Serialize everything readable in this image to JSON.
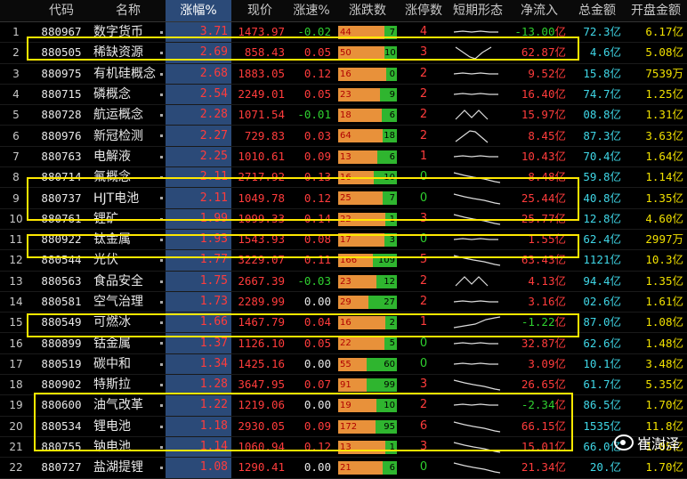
{
  "header": {
    "idx": "",
    "code": "代码",
    "name": "名称",
    "pct": "涨幅%",
    "price": "现价",
    "speed": "涨速%",
    "updown": "涨跌数",
    "limit": "涨停数",
    "trend": "短期形态",
    "netflow": "净流入",
    "amount": "总金额",
    "open_amount": "开盘金额"
  },
  "rows": [
    {
      "idx": "1",
      "code": "880967",
      "name": "数字货币",
      "pct": "3.71",
      "price": "1473.97",
      "speed": "-0.02",
      "up": 44,
      "down": 7,
      "limit": "4",
      "trend": "flat",
      "netflow": "-13.00",
      "amount": "72.3",
      "open_amount": "6.17"
    },
    {
      "idx": "2",
      "code": "880505",
      "name": "稀缺资源",
      "pct": "2.69",
      "price": "858.43",
      "speed": "0.05",
      "up": 50,
      "down": 10,
      "limit": "3",
      "trend": "v",
      "netflow": "62.87",
      "amount": "4.6",
      "open_amount": "5.08"
    },
    {
      "idx": "3",
      "code": "880975",
      "name": "有机硅概念",
      "pct": "2.68",
      "price": "1883.05",
      "speed": "0.12",
      "up": 16,
      "down": 0,
      "limit": "2",
      "trend": "flat",
      "netflow": "9.52",
      "amount": "15.8",
      "open_amount": "7539万"
    },
    {
      "idx": "4",
      "code": "880715",
      "name": "磷概念",
      "pct": "2.54",
      "price": "2249.01",
      "speed": "0.05",
      "up": 23,
      "down": 9,
      "limit": "2",
      "trend": "flat",
      "netflow": "16.40",
      "amount": "74.7",
      "open_amount": "1.25"
    },
    {
      "idx": "5",
      "code": "880728",
      "name": "航运概念",
      "pct": "2.28",
      "price": "1071.54",
      "speed": "-0.01",
      "up": 18,
      "down": 6,
      "limit": "2",
      "trend": "m",
      "netflow": "15.97",
      "amount": "08.8",
      "open_amount": "1.31"
    },
    {
      "idx": "6",
      "code": "880976",
      "name": "新冠检测",
      "pct": "2.27",
      "price": "729.83",
      "speed": "0.03",
      "up": 64,
      "down": 18,
      "limit": "2",
      "trend": "peak",
      "netflow": "8.45",
      "amount": "87.3",
      "open_amount": "3.63"
    },
    {
      "idx": "7",
      "code": "880763",
      "name": "电解液",
      "pct": "2.25",
      "price": "1010.61",
      "speed": "0.09",
      "up": 13,
      "down": 6,
      "limit": "1",
      "trend": "flat",
      "netflow": "10.43",
      "amount": "70.4",
      "open_amount": "1.64"
    },
    {
      "idx": "8",
      "code": "880714",
      "name": "氟概念",
      "pct": "2.11",
      "price": "2717.92",
      "speed": "0.13",
      "up": 16,
      "down": 10,
      "limit": "0",
      "trend": "down",
      "netflow": "8.48",
      "amount": "59.8",
      "open_amount": "1.14"
    },
    {
      "idx": "9",
      "code": "880737",
      "name": "HJT电池",
      "pct": "2.11",
      "price": "1049.78",
      "speed": "0.12",
      "up": 25,
      "down": 7,
      "limit": "0",
      "trend": "down",
      "netflow": "25.44",
      "amount": "40.8",
      "open_amount": "1.35"
    },
    {
      "idx": "10",
      "code": "880761",
      "name": "锂矿",
      "pct": "1.99",
      "price": "1099.33",
      "speed": "0.14",
      "up": 22,
      "down": 1,
      "limit": "3",
      "trend": "down",
      "netflow": "25.77",
      "amount": "12.8",
      "open_amount": "4.60"
    },
    {
      "idx": "11",
      "code": "880922",
      "name": "钛金属",
      "pct": "1.93",
      "price": "1543.93",
      "speed": "0.08",
      "up": 17,
      "down": 3,
      "limit": "0",
      "trend": "flat",
      "netflow": "1.55",
      "amount": "62.4",
      "open_amount": "2997万"
    },
    {
      "idx": "12",
      "code": "880544",
      "name": "光伏",
      "pct": "1.77",
      "price": "3229.07",
      "speed": "0.11",
      "up": 166,
      "down": 109,
      "limit": "5",
      "trend": "down",
      "netflow": "63.43",
      "amount": "1121",
      "open_amount": "10.3"
    },
    {
      "idx": "13",
      "code": "880563",
      "name": "食品安全",
      "pct": "1.75",
      "price": "2667.39",
      "speed": "-0.03",
      "up": 23,
      "down": 12,
      "limit": "2",
      "trend": "m",
      "netflow": "4.13",
      "amount": "94.4",
      "open_amount": "1.35"
    },
    {
      "idx": "14",
      "code": "880581",
      "name": "空气治理",
      "pct": "1.73",
      "price": "2289.99",
      "speed": "0.00",
      "up": 29,
      "down": 27,
      "limit": "2",
      "trend": "flat",
      "netflow": "3.16",
      "amount": "02.6",
      "open_amount": "1.61"
    },
    {
      "idx": "15",
      "code": "880549",
      "name": "可燃冰",
      "pct": "1.66",
      "price": "1467.79",
      "speed": "0.04",
      "up": 16,
      "down": 2,
      "limit": "1",
      "trend": "up",
      "netflow": "-1.22",
      "amount": "87.0",
      "open_amount": "1.08"
    },
    {
      "idx": "16",
      "code": "880899",
      "name": "钴金属",
      "pct": "1.37",
      "price": "1126.10",
      "speed": "0.05",
      "up": 22,
      "down": 5,
      "limit": "0",
      "trend": "flat",
      "netflow": "32.87",
      "amount": "62.6",
      "open_amount": "1.48"
    },
    {
      "idx": "17",
      "code": "880519",
      "name": "碳中和",
      "pct": "1.34",
      "price": "1425.16",
      "speed": "0.00",
      "up": 55,
      "down": 60,
      "limit": "0",
      "trend": "flat",
      "netflow": "3.09",
      "amount": "10.1",
      "open_amount": "3.48"
    },
    {
      "idx": "18",
      "code": "880902",
      "name": "特斯拉",
      "pct": "1.28",
      "price": "3647.95",
      "speed": "0.07",
      "up": 91,
      "down": 99,
      "limit": "3",
      "trend": "down",
      "netflow": "26.65",
      "amount": "61.7",
      "open_amount": "5.35"
    },
    {
      "idx": "19",
      "code": "880600",
      "name": "油气改革",
      "pct": "1.22",
      "price": "1219.06",
      "speed": "0.00",
      "up": 19,
      "down": 10,
      "limit": "2",
      "trend": "flat",
      "netflow": "-2.34",
      "amount": "86.5",
      "open_amount": "1.70"
    },
    {
      "idx": "20",
      "code": "880534",
      "name": "锂电池",
      "pct": "1.18",
      "price": "2930.05",
      "speed": "0.09",
      "up": 172,
      "down": 95,
      "limit": "6",
      "trend": "down",
      "netflow": "66.15",
      "amount": "1535",
      "open_amount": "11.8"
    },
    {
      "idx": "21",
      "code": "880755",
      "name": "钠电池",
      "pct": "1.14",
      "price": "1060.94",
      "speed": "0.12",
      "up": 13,
      "down": 1,
      "limit": "3",
      "trend": "down",
      "netflow": "15.01",
      "amount": "66.0",
      "open_amount": "1.05"
    },
    {
      "idx": "22",
      "code": "880727",
      "name": "盐湖提锂",
      "pct": "1.08",
      "price": "1290.41",
      "speed": "0.00",
      "up": 21,
      "down": 6,
      "limit": "0",
      "trend": "down",
      "netflow": "21.34",
      "amount": "20.",
      "open_amount": "1.70"
    }
  ],
  "unit_yi": "亿",
  "watermark": {
    "text": "崔澍泽",
    "icon": "weibo-icon"
  },
  "colors": {
    "up": "#ff3c3c",
    "down": "#2fd12f",
    "highlight": "#ffe800",
    "sorted_header": "#2b4a78",
    "amount": "#3fd6e6"
  }
}
